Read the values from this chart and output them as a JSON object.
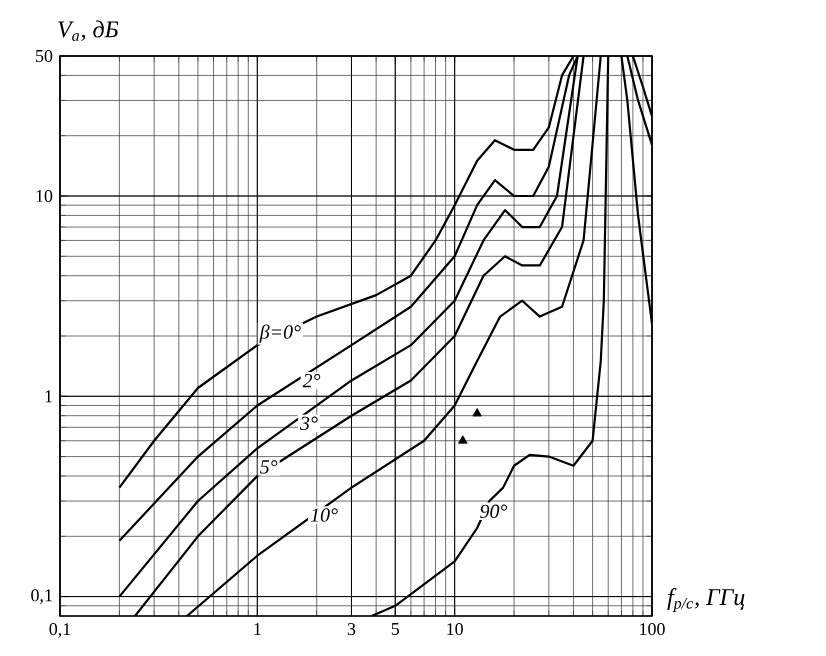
{
  "chart_data": {
    "type": "line",
    "xlabel": "f$_{р/с}$, ГГц",
    "ylabel": "V$_{a}$, дБ",
    "log": "xy",
    "grid": true,
    "xlim": [
      0.1,
      100
    ],
    "ylim": [
      0.08,
      50
    ],
    "xticks": [
      {
        "value": 0.1,
        "label": "0,1"
      },
      1,
      3,
      5,
      10,
      100
    ],
    "yticks": [
      {
        "value": 0.1,
        "label": "0,1"
      },
      1,
      10,
      50
    ],
    "series": [
      {
        "color": "#000000",
        "x": [
          0.2,
          0.3,
          0.5,
          1,
          2,
          4,
          6,
          8,
          10,
          13,
          16,
          20,
          25,
          30,
          35,
          40,
          null,
          75,
          85,
          100
        ],
        "values": [
          0.35,
          0.6,
          1.1,
          1.8,
          2.5,
          3.2,
          4,
          6,
          9,
          15,
          19,
          17,
          17,
          22,
          40,
          50,
          null,
          50,
          30,
          18
        ]
      },
      {
        "color": "#000000",
        "x": [
          0.2,
          0.5,
          1,
          3,
          6,
          10,
          13,
          16,
          20,
          25,
          30,
          38,
          42,
          null,
          80,
          90,
          100
        ],
        "values": [
          0.19,
          0.5,
          0.9,
          1.8,
          2.8,
          5,
          9,
          12,
          10,
          10,
          14,
          40,
          50,
          null,
          50,
          35,
          25
        ]
      },
      {
        "color": "#000000",
        "x": [
          0.2,
          0.5,
          1,
          3,
          6,
          10,
          14,
          18,
          22,
          27,
          33,
          42
        ],
        "values": [
          0.1,
          0.3,
          0.55,
          1.2,
          1.8,
          3,
          6,
          8.5,
          7,
          7,
          10,
          50
        ]
      },
      {
        "color": "#000000",
        "x": [
          0.24,
          0.5,
          1,
          3,
          6,
          10,
          14,
          18,
          22,
          27,
          35,
          45
        ],
        "values": [
          0.08,
          0.2,
          0.4,
          0.8,
          1.2,
          2,
          4,
          5,
          4.5,
          4.5,
          7,
          50
        ]
      },
      {
        "color": "#000000",
        "x": [
          0.44,
          1,
          3,
          7,
          10,
          13,
          17,
          22,
          27,
          35,
          45,
          55
        ],
        "values": [
          0.08,
          0.16,
          0.35,
          0.6,
          0.9,
          1.5,
          2.5,
          3,
          2.5,
          2.8,
          6,
          50
        ]
      },
      {
        "color": "#000000",
        "x": [
          3.8,
          5,
          10,
          13,
          15,
          17.6,
          20,
          24,
          30,
          40,
          50,
          55,
          57,
          60,
          null,
          70,
          75,
          85,
          100
        ],
        "values": [
          0.08,
          0.09,
          0.15,
          0.22,
          0.3,
          0.35,
          0.45,
          0.51,
          0.5,
          0.45,
          0.6,
          1.5,
          3,
          50,
          null,
          50,
          30,
          8,
          2.3
        ]
      },
      {
        "type": "scatter",
        "marker": "triangle",
        "color": "#000000",
        "x": [
          11,
          13
        ],
        "values": [
          0.6,
          0.82
        ]
      }
    ],
    "annotations": [
      {
        "text": "β=0°",
        "x": 1,
        "y": 1.8
      },
      {
        "text": "2°",
        "x": 1.65,
        "y": 1.08
      },
      {
        "text": "3°",
        "x": 1.6,
        "y": 0.66
      },
      {
        "text": "5°",
        "x": 1,
        "y": 0.4
      },
      {
        "text": "10°",
        "x": 1.8,
        "y": 0.23
      },
      {
        "text": "90°",
        "x": 13,
        "y": 0.24
      }
    ]
  }
}
